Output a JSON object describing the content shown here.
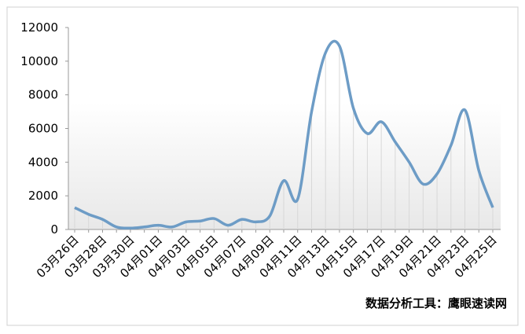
{
  "chart_data": {
    "type": "line",
    "annotation": "数据分析工具：鹰眼速读网",
    "categories": [
      "03月26日",
      null,
      "03月28日",
      null,
      "03月30日",
      null,
      "04月01日",
      null,
      "04月03日",
      null,
      "04月05日",
      null,
      "04月07日",
      null,
      "04月09日",
      null,
      "04月11日",
      null,
      "04月13日",
      null,
      "04月15日",
      null,
      "04月17日",
      null,
      "04月19日",
      null,
      "04月21日",
      null,
      "04月23日",
      null,
      "04月25日"
    ],
    "series": [
      {
        "color": "#6d9cc6",
        "values": [
          1300,
          900,
          600,
          150,
          80,
          150,
          250,
          150,
          450,
          500,
          650,
          250,
          600,
          450,
          800,
          2900,
          1800,
          7000,
          10500,
          10900,
          7200,
          5700,
          6400,
          5200,
          4000,
          2700,
          3300,
          5000,
          7100,
          3500,
          1300
        ]
      }
    ],
    "ylim": [
      0,
      12000
    ],
    "yticks": [
      0,
      2000,
      4000,
      6000,
      8000,
      10000,
      12000
    ]
  }
}
